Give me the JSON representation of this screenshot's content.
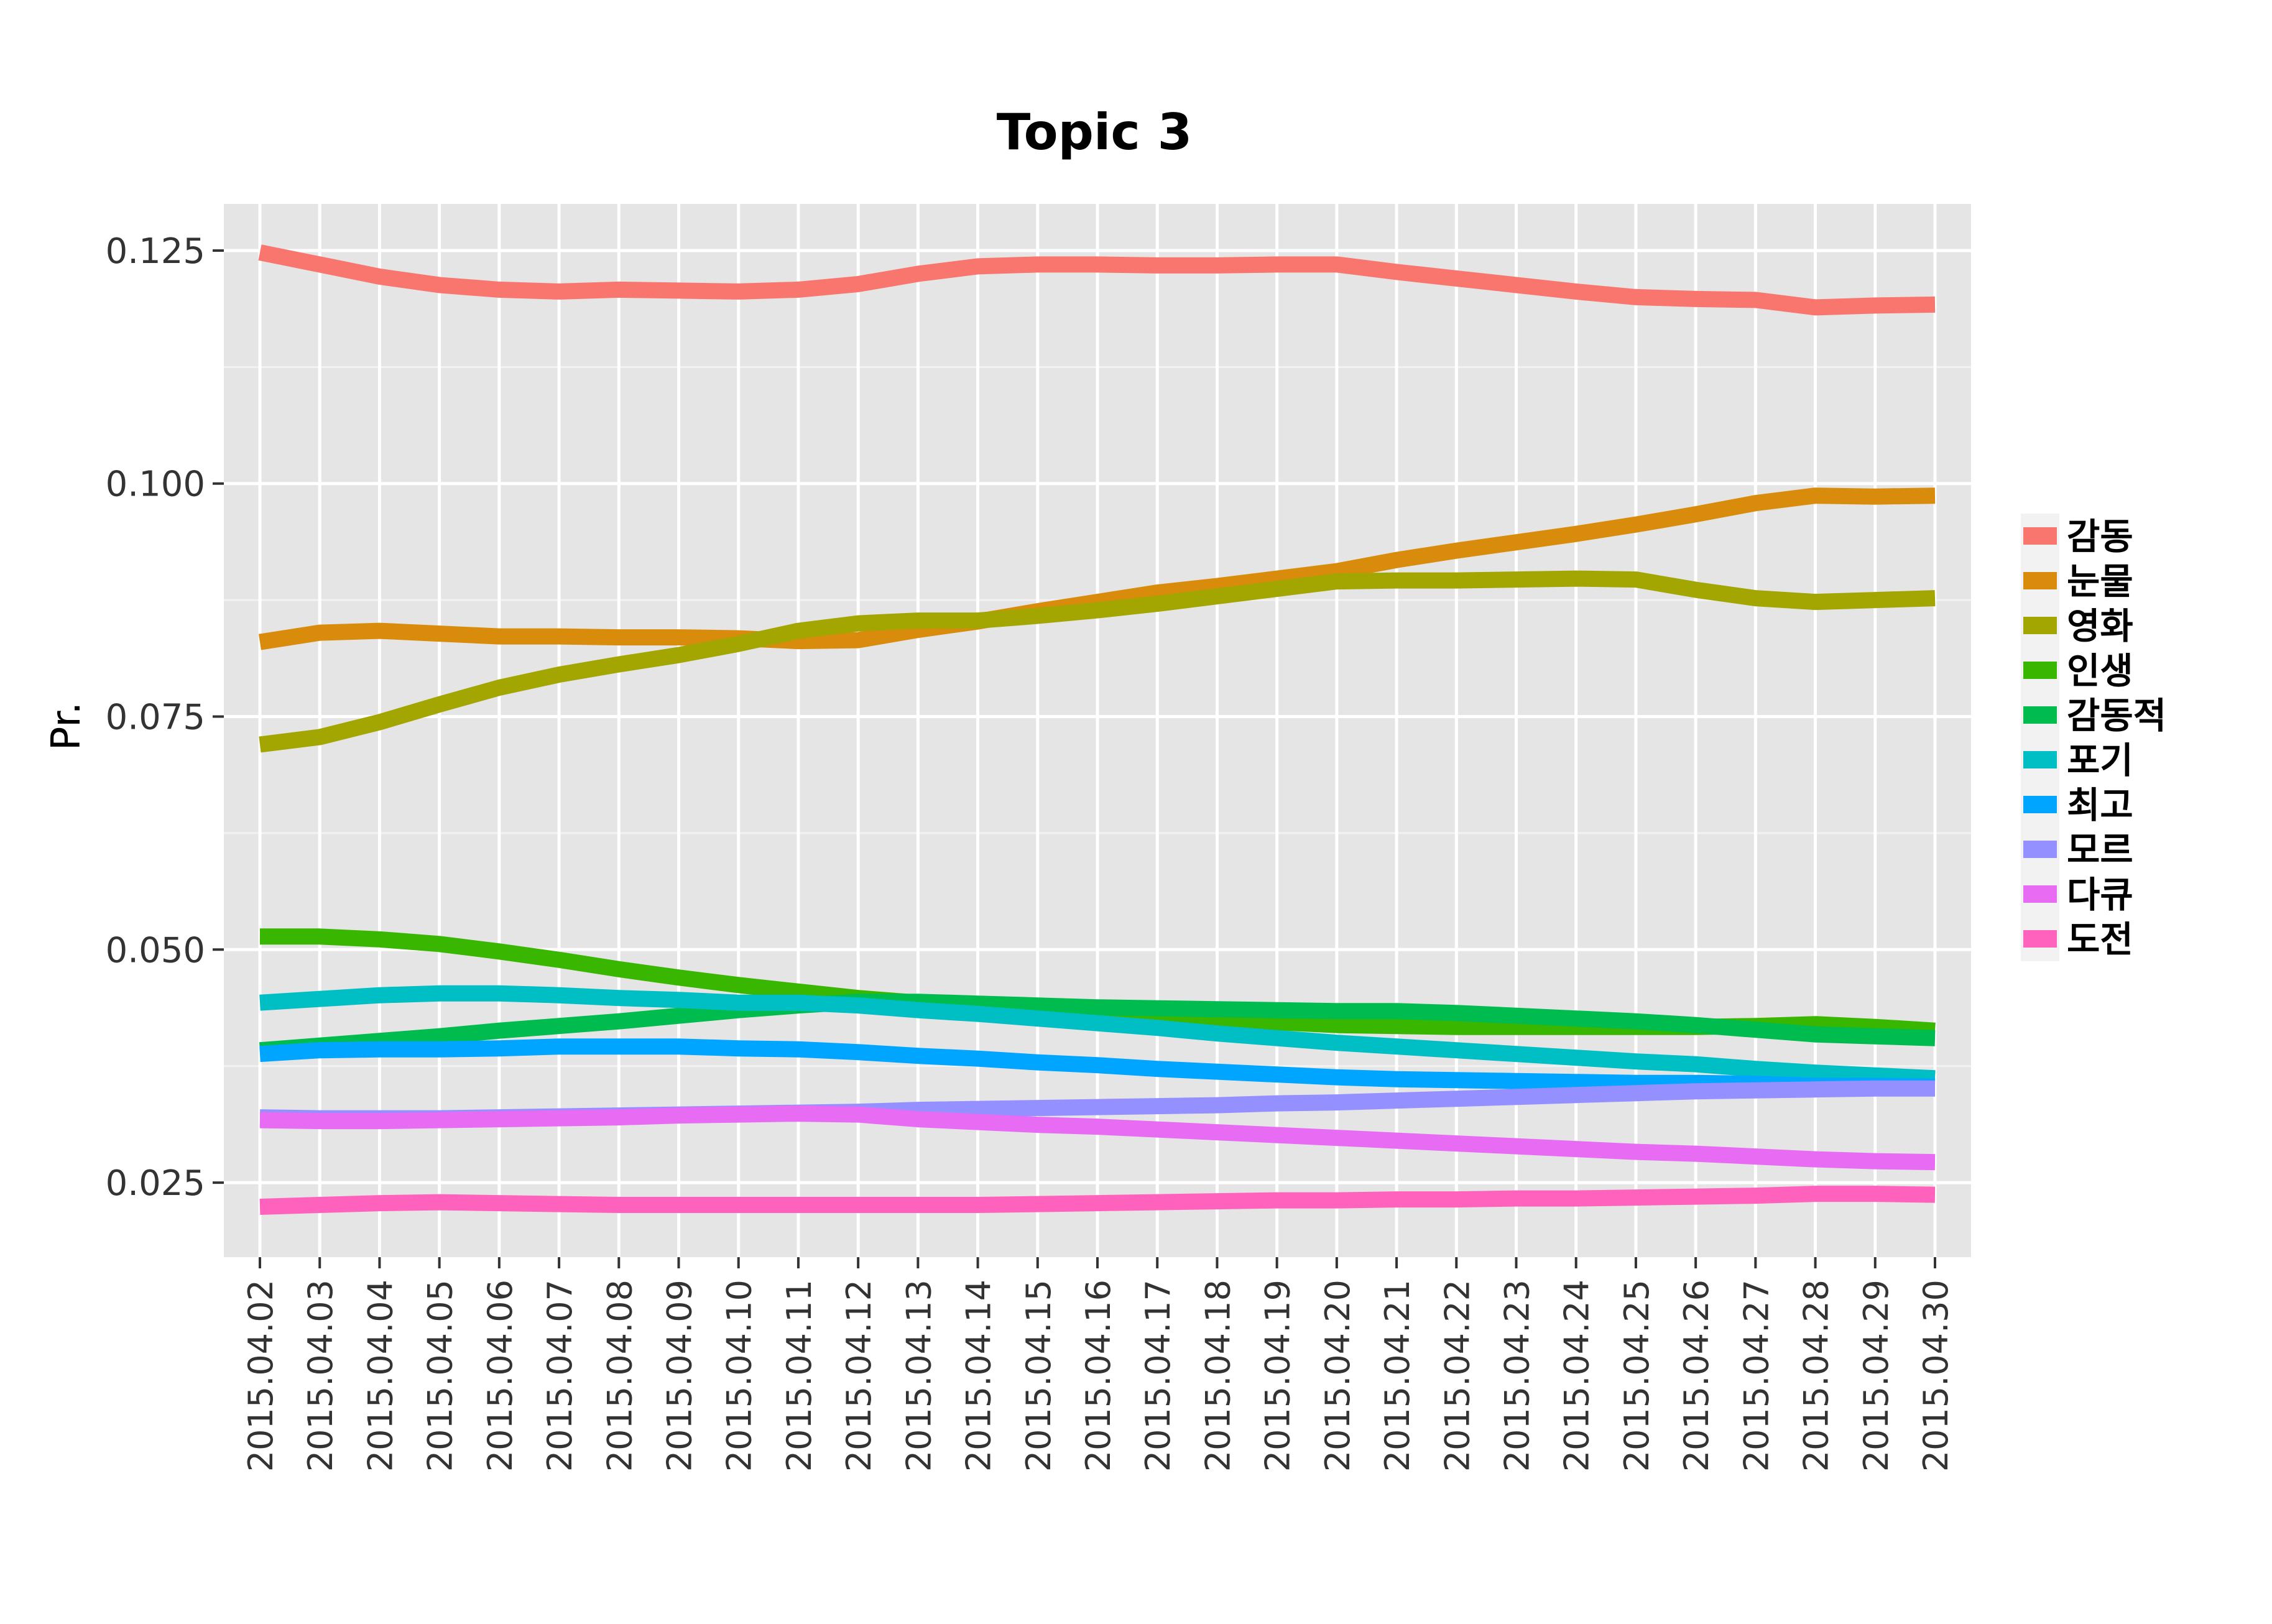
{
  "chart_data": {
    "type": "line",
    "title": "Topic 3",
    "xlabel": "",
    "ylabel": "Pr.",
    "ylim": [
      0.017,
      0.13
    ],
    "yticks": [
      0.025,
      0.05,
      0.075,
      0.1,
      0.125
    ],
    "ytick_labels": [
      "0.025",
      "0.050",
      "0.075",
      "0.100",
      "0.125"
    ],
    "grid": true,
    "legend_position": "right",
    "x": [
      "2015.04.02",
      "2015.04.03",
      "2015.04.04",
      "2015.04.05",
      "2015.04.06",
      "2015.04.07",
      "2015.04.08",
      "2015.04.09",
      "2015.04.10",
      "2015.04.11",
      "2015.04.12",
      "2015.04.13",
      "2015.04.14",
      "2015.04.15",
      "2015.04.16",
      "2015.04.17",
      "2015.04.18",
      "2015.04.19",
      "2015.04.20",
      "2015.04.21",
      "2015.04.22",
      "2015.04.23",
      "2015.04.24",
      "2015.04.25",
      "2015.04.26",
      "2015.04.27",
      "2015.04.28",
      "2015.04.29",
      "2015.04.30"
    ],
    "series": [
      {
        "name": "감동",
        "color": "#F8766D",
        "values": [
          0.1248,
          0.1235,
          0.1222,
          0.1213,
          0.1208,
          0.1206,
          0.1208,
          0.1207,
          0.1206,
          0.1208,
          0.1214,
          0.1225,
          0.1233,
          0.1235,
          0.1235,
          0.1234,
          0.1234,
          0.1235,
          0.1235,
          0.1227,
          0.122,
          0.1213,
          0.1206,
          0.12,
          0.1198,
          0.1197,
          0.1189,
          0.1191,
          0.1192
        ]
      },
      {
        "name": "눈물",
        "color": "#D98C0B",
        "values": [
          0.083,
          0.084,
          0.0842,
          0.0839,
          0.0836,
          0.0836,
          0.0835,
          0.0835,
          0.0834,
          0.0831,
          0.0832,
          0.0843,
          0.0852,
          0.0863,
          0.0873,
          0.0883,
          0.089,
          0.0898,
          0.0906,
          0.0918,
          0.0928,
          0.0937,
          0.0946,
          0.0956,
          0.0967,
          0.0979,
          0.0987,
          0.0986,
          0.0987
        ]
      },
      {
        "name": "영화",
        "color": "#A3A500",
        "values": [
          0.072,
          0.0728,
          0.0744,
          0.0763,
          0.0781,
          0.0795,
          0.0806,
          0.0816,
          0.0828,
          0.0842,
          0.085,
          0.0853,
          0.0853,
          0.0858,
          0.0864,
          0.0871,
          0.0879,
          0.0887,
          0.0895,
          0.0896,
          0.0896,
          0.0897,
          0.0898,
          0.0897,
          0.0886,
          0.0877,
          0.0873,
          0.0875,
          0.0877
        ]
      },
      {
        "name": "인생",
        "color": "#39B600",
        "values": [
          0.0514,
          0.0514,
          0.0511,
          0.0506,
          0.0498,
          0.0489,
          0.0479,
          0.047,
          0.0462,
          0.0455,
          0.0448,
          0.0443,
          0.044,
          0.0437,
          0.0434,
          0.043,
          0.0426,
          0.0422,
          0.0419,
          0.0418,
          0.0417,
          0.0417,
          0.0417,
          0.0417,
          0.0417,
          0.0418,
          0.042,
          0.0417,
          0.0413
        ]
      },
      {
        "name": "감동적",
        "color": "#00BB4E",
        "values": [
          0.0392,
          0.0397,
          0.0402,
          0.0407,
          0.0413,
          0.0418,
          0.0423,
          0.0429,
          0.0435,
          0.044,
          0.0444,
          0.0444,
          0.0442,
          0.044,
          0.0438,
          0.0437,
          0.0436,
          0.0435,
          0.0434,
          0.0434,
          0.0432,
          0.0429,
          0.0426,
          0.0423,
          0.0419,
          0.0414,
          0.0409,
          0.0407,
          0.0405
        ]
      },
      {
        "name": "포기",
        "color": "#00BFC4",
        "values": [
          0.0443,
          0.0447,
          0.0451,
          0.0453,
          0.0453,
          0.0451,
          0.0448,
          0.0446,
          0.0443,
          0.0443,
          0.044,
          0.0435,
          0.0431,
          0.0426,
          0.0421,
          0.0416,
          0.041,
          0.0405,
          0.04,
          0.0396,
          0.0392,
          0.0388,
          0.0384,
          0.038,
          0.0377,
          0.0372,
          0.0368,
          0.0365,
          0.0362
        ]
      },
      {
        "name": "최고",
        "color": "#00A5FF",
        "values": [
          0.0388,
          0.0392,
          0.0393,
          0.0393,
          0.0394,
          0.0396,
          0.0396,
          0.0396,
          0.0394,
          0.0393,
          0.039,
          0.0386,
          0.0383,
          0.0379,
          0.0376,
          0.0372,
          0.0369,
          0.0366,
          0.0363,
          0.0361,
          0.036,
          0.0359,
          0.0358,
          0.0357,
          0.0357,
          0.0356,
          0.0354,
          0.0354,
          0.0353
        ]
      },
      {
        "name": "모르",
        "color": "#9590FF",
        "values": [
          0.032,
          0.0319,
          0.0319,
          0.0319,
          0.032,
          0.0321,
          0.0322,
          0.0323,
          0.0324,
          0.0325,
          0.0326,
          0.0328,
          0.0329,
          0.033,
          0.0331,
          0.0332,
          0.0333,
          0.0335,
          0.0336,
          0.0338,
          0.034,
          0.0342,
          0.0344,
          0.0346,
          0.0348,
          0.0349,
          0.035,
          0.0351,
          0.0351
        ]
      },
      {
        "name": "다큐",
        "color": "#E76BF3",
        "values": [
          0.0317,
          0.0316,
          0.0316,
          0.0317,
          0.0318,
          0.0319,
          0.032,
          0.0322,
          0.0323,
          0.0324,
          0.0323,
          0.0318,
          0.0315,
          0.0312,
          0.031,
          0.0307,
          0.0304,
          0.0301,
          0.0298,
          0.0295,
          0.0292,
          0.0289,
          0.0286,
          0.0283,
          0.0281,
          0.0278,
          0.0275,
          0.0273,
          0.0272
        ]
      },
      {
        "name": "도전",
        "color": "#FF62BC",
        "values": [
          0.0224,
          0.0226,
          0.0228,
          0.0229,
          0.0228,
          0.0227,
          0.0226,
          0.0226,
          0.0226,
          0.0226,
          0.0226,
          0.0226,
          0.0226,
          0.0227,
          0.0228,
          0.0229,
          0.023,
          0.0231,
          0.0231,
          0.0232,
          0.0232,
          0.0233,
          0.0233,
          0.0234,
          0.0235,
          0.0236,
          0.0238,
          0.0238,
          0.0237
        ]
      }
    ]
  }
}
